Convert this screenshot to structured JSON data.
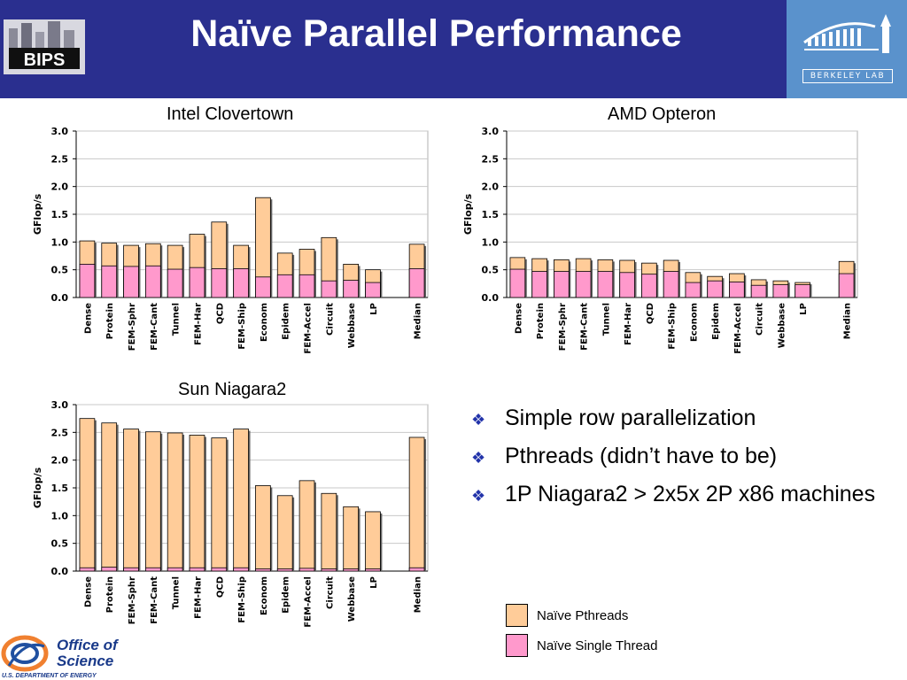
{
  "header": {
    "title": "Naïve Parallel Performance",
    "left_logo_text": "BIPS",
    "right_logo_text": "BERKELEY LAB"
  },
  "bullets": [
    "Simple row parallelization",
    "Pthreads (didn’t have to be)",
    "1P Niagara2 > 2x5x 2P x86 machines"
  ],
  "legend": [
    {
      "label": "Naïve Pthreads",
      "color": "#ffcc99"
    },
    {
      "label": "Naïve Single Thread",
      "color": "#ff99cc"
    }
  ],
  "footer": {
    "logo_line1": "Office of",
    "logo_line2": "Science",
    "logo_line3": "U.S. DEPARTMENT OF ENERGY"
  },
  "colors": {
    "header_bg": "#2a2f8f",
    "pthreads": "#ffcc99",
    "single_thread": "#ff99cc"
  },
  "chart_data": [
    {
      "type": "bar",
      "title": "Intel Clovertown",
      "ylabel": "GFlop/s",
      "ylim": [
        0,
        3
      ],
      "yticks": [
        "0.0",
        "0.5",
        "1.0",
        "1.5",
        "2.0",
        "2.5",
        "3.0"
      ],
      "grid": true,
      "categories": [
        "Dense",
        "Protein",
        "FEM-Sphr",
        "FEM-Cant",
        "Tunnel",
        "FEM-Har",
        "QCD",
        "FEM-Ship",
        "Econom",
        "Epidem",
        "FEM-Accel",
        "Circuit",
        "Webbase",
        "LP",
        "",
        "Median"
      ],
      "series": [
        {
          "name": "Naïve Pthreads",
          "values": [
            1.02,
            0.98,
            0.94,
            0.97,
            0.94,
            1.14,
            1.36,
            0.94,
            1.8,
            0.8,
            0.87,
            1.08,
            0.6,
            0.5,
            null,
            0.96
          ]
        },
        {
          "name": "Naïve Single Thread",
          "values": [
            0.6,
            0.57,
            0.56,
            0.57,
            0.51,
            0.54,
            0.52,
            0.52,
            0.37,
            0.41,
            0.41,
            0.3,
            0.31,
            0.27,
            null,
            0.52
          ]
        }
      ]
    },
    {
      "type": "bar",
      "title": "AMD Opteron",
      "ylabel": "GFlop/s",
      "ylim": [
        0,
        3
      ],
      "yticks": [
        "0.0",
        "0.5",
        "1.0",
        "1.5",
        "2.0",
        "2.5",
        "3.0"
      ],
      "grid": true,
      "categories": [
        "Dense",
        "Protein",
        "FEM-Sphr",
        "FEM-Cant",
        "Tunnel",
        "FEM-Har",
        "QCD",
        "FEM-Ship",
        "Econom",
        "Epidem",
        "FEM-Accel",
        "Circuit",
        "Webbase",
        "LP",
        "",
        "Median"
      ],
      "series": [
        {
          "name": "Naïve Pthreads",
          "values": [
            0.72,
            0.7,
            0.68,
            0.7,
            0.68,
            0.67,
            0.62,
            0.67,
            0.45,
            0.38,
            0.43,
            0.32,
            0.3,
            0.27,
            null,
            0.65
          ]
        },
        {
          "name": "Naïve Single Thread",
          "values": [
            0.51,
            0.47,
            0.47,
            0.47,
            0.47,
            0.45,
            0.42,
            0.47,
            0.27,
            0.3,
            0.28,
            0.22,
            0.23,
            0.23,
            null,
            0.43
          ]
        }
      ]
    },
    {
      "type": "bar",
      "title": "Sun Niagara2",
      "ylabel": "GFlop/s",
      "ylim": [
        0,
        3
      ],
      "yticks": [
        "0.0",
        "0.5",
        "1.0",
        "1.5",
        "2.0",
        "2.5",
        "3.0"
      ],
      "grid": true,
      "categories": [
        "Dense",
        "Protein",
        "FEM-Sphr",
        "FEM-Cant",
        "Tunnel",
        "FEM-Har",
        "QCD",
        "FEM-Ship",
        "Econom",
        "Epidem",
        "FEM-Accel",
        "Circuit",
        "Webbase",
        "LP",
        "",
        "Median"
      ],
      "series": [
        {
          "name": "Naïve Pthreads",
          "values": [
            2.75,
            2.67,
            2.56,
            2.51,
            2.49,
            2.45,
            2.4,
            2.56,
            1.54,
            1.36,
            1.63,
            1.4,
            1.16,
            1.07,
            null,
            2.41
          ]
        },
        {
          "name": "Naïve Single Thread",
          "values": [
            0.06,
            0.07,
            0.06,
            0.06,
            0.06,
            0.06,
            0.06,
            0.06,
            0.04,
            0.04,
            0.05,
            0.04,
            0.04,
            0.04,
            null,
            0.06
          ]
        }
      ]
    }
  ]
}
